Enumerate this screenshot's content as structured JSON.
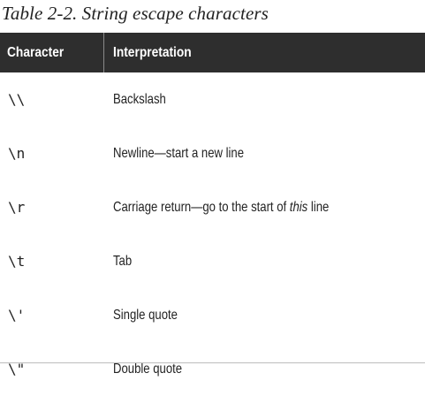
{
  "caption": "Table 2-2. String escape characters",
  "table": {
    "headers": [
      "Character",
      "Interpretation"
    ],
    "rows": [
      {
        "character": "\\\\",
        "interpretation": "Backslash"
      },
      {
        "character": "\\n",
        "interpretation": "Newline—start a new line"
      },
      {
        "character": "\\r",
        "interpretation_before": "Carriage return—go to the start of ",
        "interpretation_emph": "this",
        "interpretation_after": " line"
      },
      {
        "character": "\\t",
        "interpretation": "Tab"
      },
      {
        "character": "\\'",
        "interpretation": "Single quote"
      },
      {
        "character": "\\\"",
        "interpretation": "Double quote"
      }
    ]
  }
}
